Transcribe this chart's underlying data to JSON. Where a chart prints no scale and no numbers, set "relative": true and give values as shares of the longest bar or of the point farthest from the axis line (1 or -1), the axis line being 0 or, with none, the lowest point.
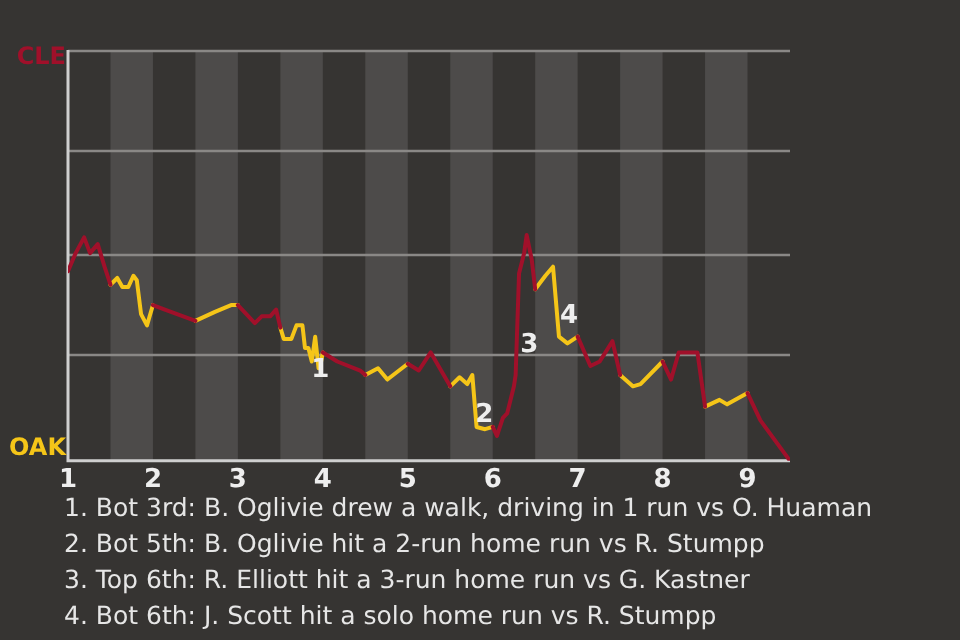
{
  "chart_data": {
    "type": "line",
    "relative": true,
    "legend": false,
    "marker": "none",
    "line_style": "solid",
    "x": [
      1,
      1.09,
      1.19,
      1.26,
      1.35,
      1.43,
      1.5,
      1.58,
      1.64,
      1.71,
      1.77,
      1.81,
      1.86,
      1.93,
      2,
      2.14,
      2.5,
      2.73,
      2.92,
      3,
      3.2,
      3.28,
      3.38,
      3.45,
      3.5,
      3.54,
      3.63,
      3.69,
      3.76,
      3.79,
      3.83,
      3.87,
      3.91,
      3.95,
      3.98,
      4,
      4.17,
      4.44,
      4.5,
      4.65,
      4.76,
      5,
      5.13,
      5.27,
      5.5,
      5.61,
      5.7,
      5.76,
      5.81,
      5.91,
      6,
      6.05,
      6.12,
      6.17,
      6.25,
      6.27,
      6.31,
      6.37,
      6.4,
      6.46,
      6.5,
      6.62,
      6.71,
      6.78,
      6.88,
      7,
      7.15,
      7.26,
      7.41,
      7.5,
      7.65,
      7.74,
      8,
      8.1,
      8.19,
      8.41,
      8.5,
      8.67,
      8.76,
      9,
      9.15,
      9.5
    ],
    "series": [
      {
        "name": "CLE",
        "color": "#a0102a",
        "values": [
          0.84,
          0.92,
          0.99,
          0.92,
          0.96,
          0.86,
          0.78,
          null,
          null,
          null,
          null,
          null,
          null,
          null,
          0.69,
          0.67,
          0.62,
          null,
          null,
          0.69,
          0.61,
          0.64,
          0.64,
          0.67,
          0.59,
          null,
          null,
          null,
          null,
          null,
          null,
          null,
          null,
          null,
          null,
          0.48,
          0.44,
          0.4,
          0.38,
          null,
          null,
          0.43,
          0.4,
          0.48,
          0.33,
          null,
          null,
          null,
          null,
          null,
          0.15,
          0.11,
          0.19,
          0.21,
          0.33,
          0.38,
          0.83,
          0.92,
          1.0,
          0.89,
          0.76,
          null,
          null,
          null,
          null,
          0.55,
          0.42,
          0.44,
          0.53,
          0.38,
          null,
          null,
          0.44,
          0.36,
          0.48,
          0.48,
          0.24,
          null,
          null,
          0.3,
          0.18,
          0
        ]
      },
      {
        "name": "OAK",
        "color": "#f5c518",
        "values": [
          null,
          null,
          null,
          null,
          null,
          null,
          0.78,
          0.81,
          0.77,
          0.77,
          0.82,
          0.8,
          0.65,
          0.6,
          0.69,
          null,
          0.62,
          0.66,
          0.69,
          0.69,
          null,
          null,
          null,
          null,
          0.59,
          0.54,
          0.54,
          0.6,
          0.6,
          0.5,
          0.5,
          0.44,
          0.55,
          0.41,
          0.44,
          0.48,
          null,
          null,
          0.38,
          0.41,
          0.36,
          0.43,
          null,
          null,
          0.33,
          0.37,
          0.34,
          0.38,
          0.15,
          0.14,
          0.15,
          null,
          null,
          null,
          null,
          null,
          null,
          null,
          null,
          null,
          0.76,
          0.82,
          0.86,
          0.55,
          0.52,
          0.55,
          null,
          null,
          null,
          0.38,
          0.33,
          0.34,
          0.44,
          null,
          null,
          null,
          0.24,
          0.27,
          0.25,
          0.3,
          null,
          null
        ]
      }
    ],
    "ref_lines": [
      {
        "axis": "y",
        "value": 0.47,
        "color": "#8a8886"
      },
      {
        "axis": "y",
        "value": 0.92,
        "color": "#8a8886"
      },
      {
        "axis": "y",
        "value": 1.38,
        "color": "#8a8886"
      },
      {
        "axis": "y",
        "value": 1.82,
        "color": "#8a8886"
      }
    ],
    "xlim": [
      1,
      9.5
    ],
    "xticks": [
      1,
      2,
      3,
      4,
      5,
      6,
      7,
      8,
      9
    ],
    "bands": [
      {
        "axis": "x",
        "from": 1.5,
        "to": 2,
        "color": "#4d4b4a"
      },
      {
        "axis": "x",
        "from": 2.5,
        "to": 3,
        "color": "#4d4b4a"
      },
      {
        "axis": "x",
        "from": 3.5,
        "to": 4,
        "color": "#4d4b4a"
      },
      {
        "axis": "x",
        "from": 4.5,
        "to": 5,
        "color": "#4d4b4a"
      },
      {
        "axis": "x",
        "from": 5.5,
        "to": 6,
        "color": "#4d4b4a"
      },
      {
        "axis": "x",
        "from": 6.5,
        "to": 7,
        "color": "#4d4b4a"
      },
      {
        "axis": "x",
        "from": 7.5,
        "to": 8,
        "color": "#4d4b4a"
      },
      {
        "axis": "x",
        "from": 8.5,
        "to": 9,
        "color": "#4d4b4a"
      }
    ],
    "annotations": [
      {
        "text": "1",
        "x": 3.97,
        "y": 0.4
      },
      {
        "text": "2",
        "x": 5.9,
        "y": 0.2
      },
      {
        "text": "3",
        "x": 6.43,
        "y": 0.51
      },
      {
        "text": "4",
        "x": 6.9,
        "y": 0.64
      },
      "1. Bot 3rd: B. Oglivie drew a walk, driving in 1 run vs O. Huaman",
      "2. Bot 5th: B. Oglivie hit a 2-run home run vs R. Stumpp",
      "3. Top 6th: R. Elliott hit a 3-run home run vs G. Kastner",
      "4. Bot 6th: J. Scott hit a solo home run vs R. Stumpp"
    ]
  }
}
